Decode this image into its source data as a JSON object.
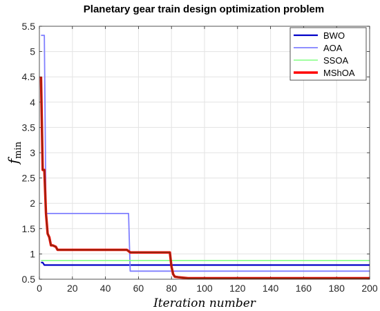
{
  "chart_data": {
    "type": "line",
    "title": "Planetary gear train design optimization problem",
    "xlabel": "Iteration number",
    "ylabel": {
      "main": "f",
      "sub": "min"
    },
    "xlim": [
      0,
      200
    ],
    "ylim": [
      0.5,
      5.5
    ],
    "xticks": [
      0,
      20,
      40,
      60,
      80,
      100,
      120,
      140,
      160,
      180,
      200
    ],
    "yticks": [
      0.5,
      1,
      1.5,
      2,
      2.5,
      3,
      3.5,
      4,
      4.5,
      5,
      5.5
    ],
    "grid": true,
    "legend_position": "top-right",
    "series": [
      {
        "name": "BWO",
        "color": "#0000c8",
        "x": [
          1,
          2,
          3,
          200
        ],
        "y": [
          0.83,
          0.83,
          0.78,
          0.78
        ]
      },
      {
        "name": "AOA",
        "color": "#7f7fff",
        "x": [
          1,
          3,
          4,
          54,
          55,
          200
        ],
        "y": [
          5.32,
          5.32,
          1.8,
          1.8,
          0.66,
          0.66
        ]
      },
      {
        "name": "SSOA",
        "color": "#80ff80",
        "x": [
          1,
          200
        ],
        "y": [
          0.87,
          0.87
        ]
      },
      {
        "name": "MShOA",
        "color": "#ff0000",
        "x": [
          1,
          2,
          3,
          4,
          5,
          6,
          7,
          8,
          10,
          11,
          53,
          55,
          79,
          80,
          81,
          82,
          84,
          90,
          200
        ],
        "y": [
          4.5,
          2.66,
          2.66,
          1.8,
          1.4,
          1.33,
          1.17,
          1.17,
          1.14,
          1.08,
          1.08,
          1.03,
          1.03,
          0.75,
          0.6,
          0.55,
          0.54,
          0.52,
          0.52
        ]
      },
      {
        "name": "",
        "color": "#8b2c10",
        "x": [
          1,
          2,
          3,
          4,
          5,
          6,
          7,
          8,
          10,
          11,
          53,
          55,
          79,
          80,
          81,
          82,
          84,
          90,
          200
        ],
        "y": [
          4.5,
          2.66,
          2.66,
          1.8,
          1.4,
          1.33,
          1.17,
          1.17,
          1.14,
          1.08,
          1.08,
          1.03,
          1.03,
          0.75,
          0.6,
          0.55,
          0.54,
          0.52,
          0.52
        ]
      }
    ]
  }
}
